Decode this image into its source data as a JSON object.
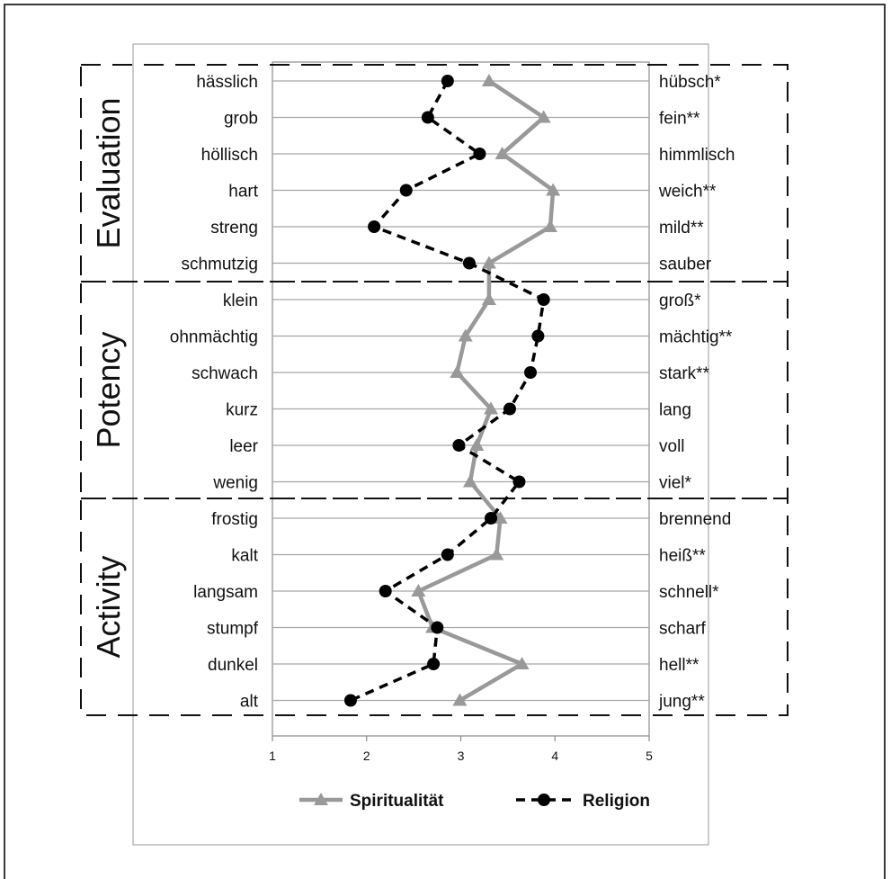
{
  "chart_data": {
    "type": "line",
    "title": "",
    "xlabel": "",
    "ylabel": "",
    "xlim": [
      1,
      5
    ],
    "x_ticks": [
      "1",
      "2",
      "3",
      "4",
      "5"
    ],
    "grid": "horizontal",
    "legend_position": "bottom",
    "left_labels": [
      "hässlich",
      "grob",
      "höllisch",
      "hart",
      "streng",
      "schmutzig",
      "klein",
      "ohnmächtig",
      "schwach",
      "kurz",
      "leer",
      "wenig",
      "frostig",
      "kalt",
      "langsam",
      "stumpf",
      "dunkel",
      "alt"
    ],
    "right_labels": [
      "hübsch*",
      "fein**",
      "himmlisch",
      "weich**",
      "mild**",
      "sauber",
      "groß*",
      "mächtig**",
      "stark**",
      "lang",
      "voll",
      "viel*",
      "brennend",
      "heiß**",
      "schnell*",
      "scharf",
      "hell**",
      "jung**"
    ],
    "sections": [
      {
        "name": "Evaluation",
        "start": 0,
        "end": 5
      },
      {
        "name": "Potency",
        "start": 6,
        "end": 11
      },
      {
        "name": "Activity",
        "start": 12,
        "end": 17
      }
    ],
    "series": [
      {
        "name": "Spiritualität",
        "color": "#999999",
        "marker": "triangle",
        "dash": "solid",
        "values": [
          3.3,
          3.88,
          3.44,
          3.98,
          3.95,
          3.3,
          3.3,
          3.05,
          2.96,
          3.32,
          3.17,
          3.1,
          3.42,
          3.38,
          2.55,
          2.7,
          3.65,
          2.99
        ]
      },
      {
        "name": "Religion",
        "color": "#000000",
        "marker": "circle",
        "dash": "dashed",
        "values": [
          2.86,
          2.65,
          3.2,
          2.42,
          2.08,
          3.09,
          3.88,
          3.82,
          3.74,
          3.52,
          2.98,
          3.62,
          3.32,
          2.86,
          2.2,
          2.75,
          2.71,
          1.83
        ]
      }
    ]
  }
}
